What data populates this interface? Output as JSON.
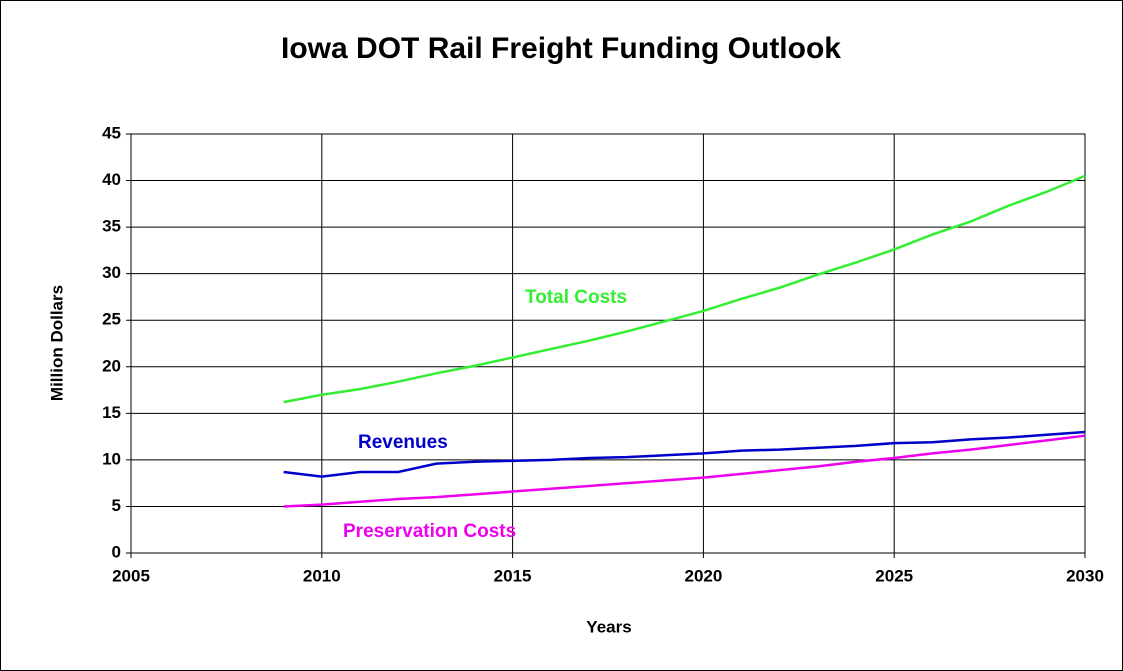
{
  "chart_data": {
    "type": "line",
    "title": "Iowa DOT Rail Freight Funding Outlook",
    "x_label": "Years",
    "y_label": "Million Dollars",
    "x": [
      2009,
      2010,
      2011,
      2012,
      2013,
      2014,
      2015,
      2016,
      2017,
      2018,
      2019,
      2020,
      2021,
      2022,
      2023,
      2024,
      2025,
      2026,
      2027,
      2028,
      2029,
      2030
    ],
    "series": [
      {
        "name": "Total Costs",
        "color": "#33ee33",
        "values": [
          16.2,
          17.0,
          17.6,
          18.4,
          19.3,
          20.1,
          21.0,
          21.9,
          22.8,
          23.8,
          24.9,
          26.0,
          27.3,
          28.5,
          29.9,
          31.2,
          32.6,
          34.2,
          35.6,
          37.3,
          38.8,
          40.5
        ]
      },
      {
        "name": "Revenues",
        "color": "#0000cc",
        "values": [
          8.7,
          8.2,
          8.7,
          8.7,
          9.6,
          9.8,
          9.9,
          10.0,
          10.2,
          10.3,
          10.5,
          10.7,
          11.0,
          11.1,
          11.3,
          11.5,
          11.8,
          11.9,
          12.2,
          12.4,
          12.7,
          13.0
        ]
      },
      {
        "name": "Preservation Costs",
        "color": "#ee00ee",
        "values": [
          5.0,
          5.2,
          5.5,
          5.8,
          6.0,
          6.3,
          6.6,
          6.9,
          7.2,
          7.5,
          7.8,
          8.1,
          8.5,
          8.9,
          9.3,
          9.8,
          10.2,
          10.7,
          11.1,
          11.6,
          12.1,
          12.6
        ]
      }
    ],
    "xlim": [
      2005,
      2030
    ],
    "xticks": [
      2005,
      2010,
      2015,
      2020,
      2025,
      2030
    ],
    "ylim": [
      0,
      45
    ],
    "yticks": [
      0,
      5,
      10,
      15,
      20,
      25,
      30,
      35,
      40,
      45
    ],
    "grid": true
  }
}
